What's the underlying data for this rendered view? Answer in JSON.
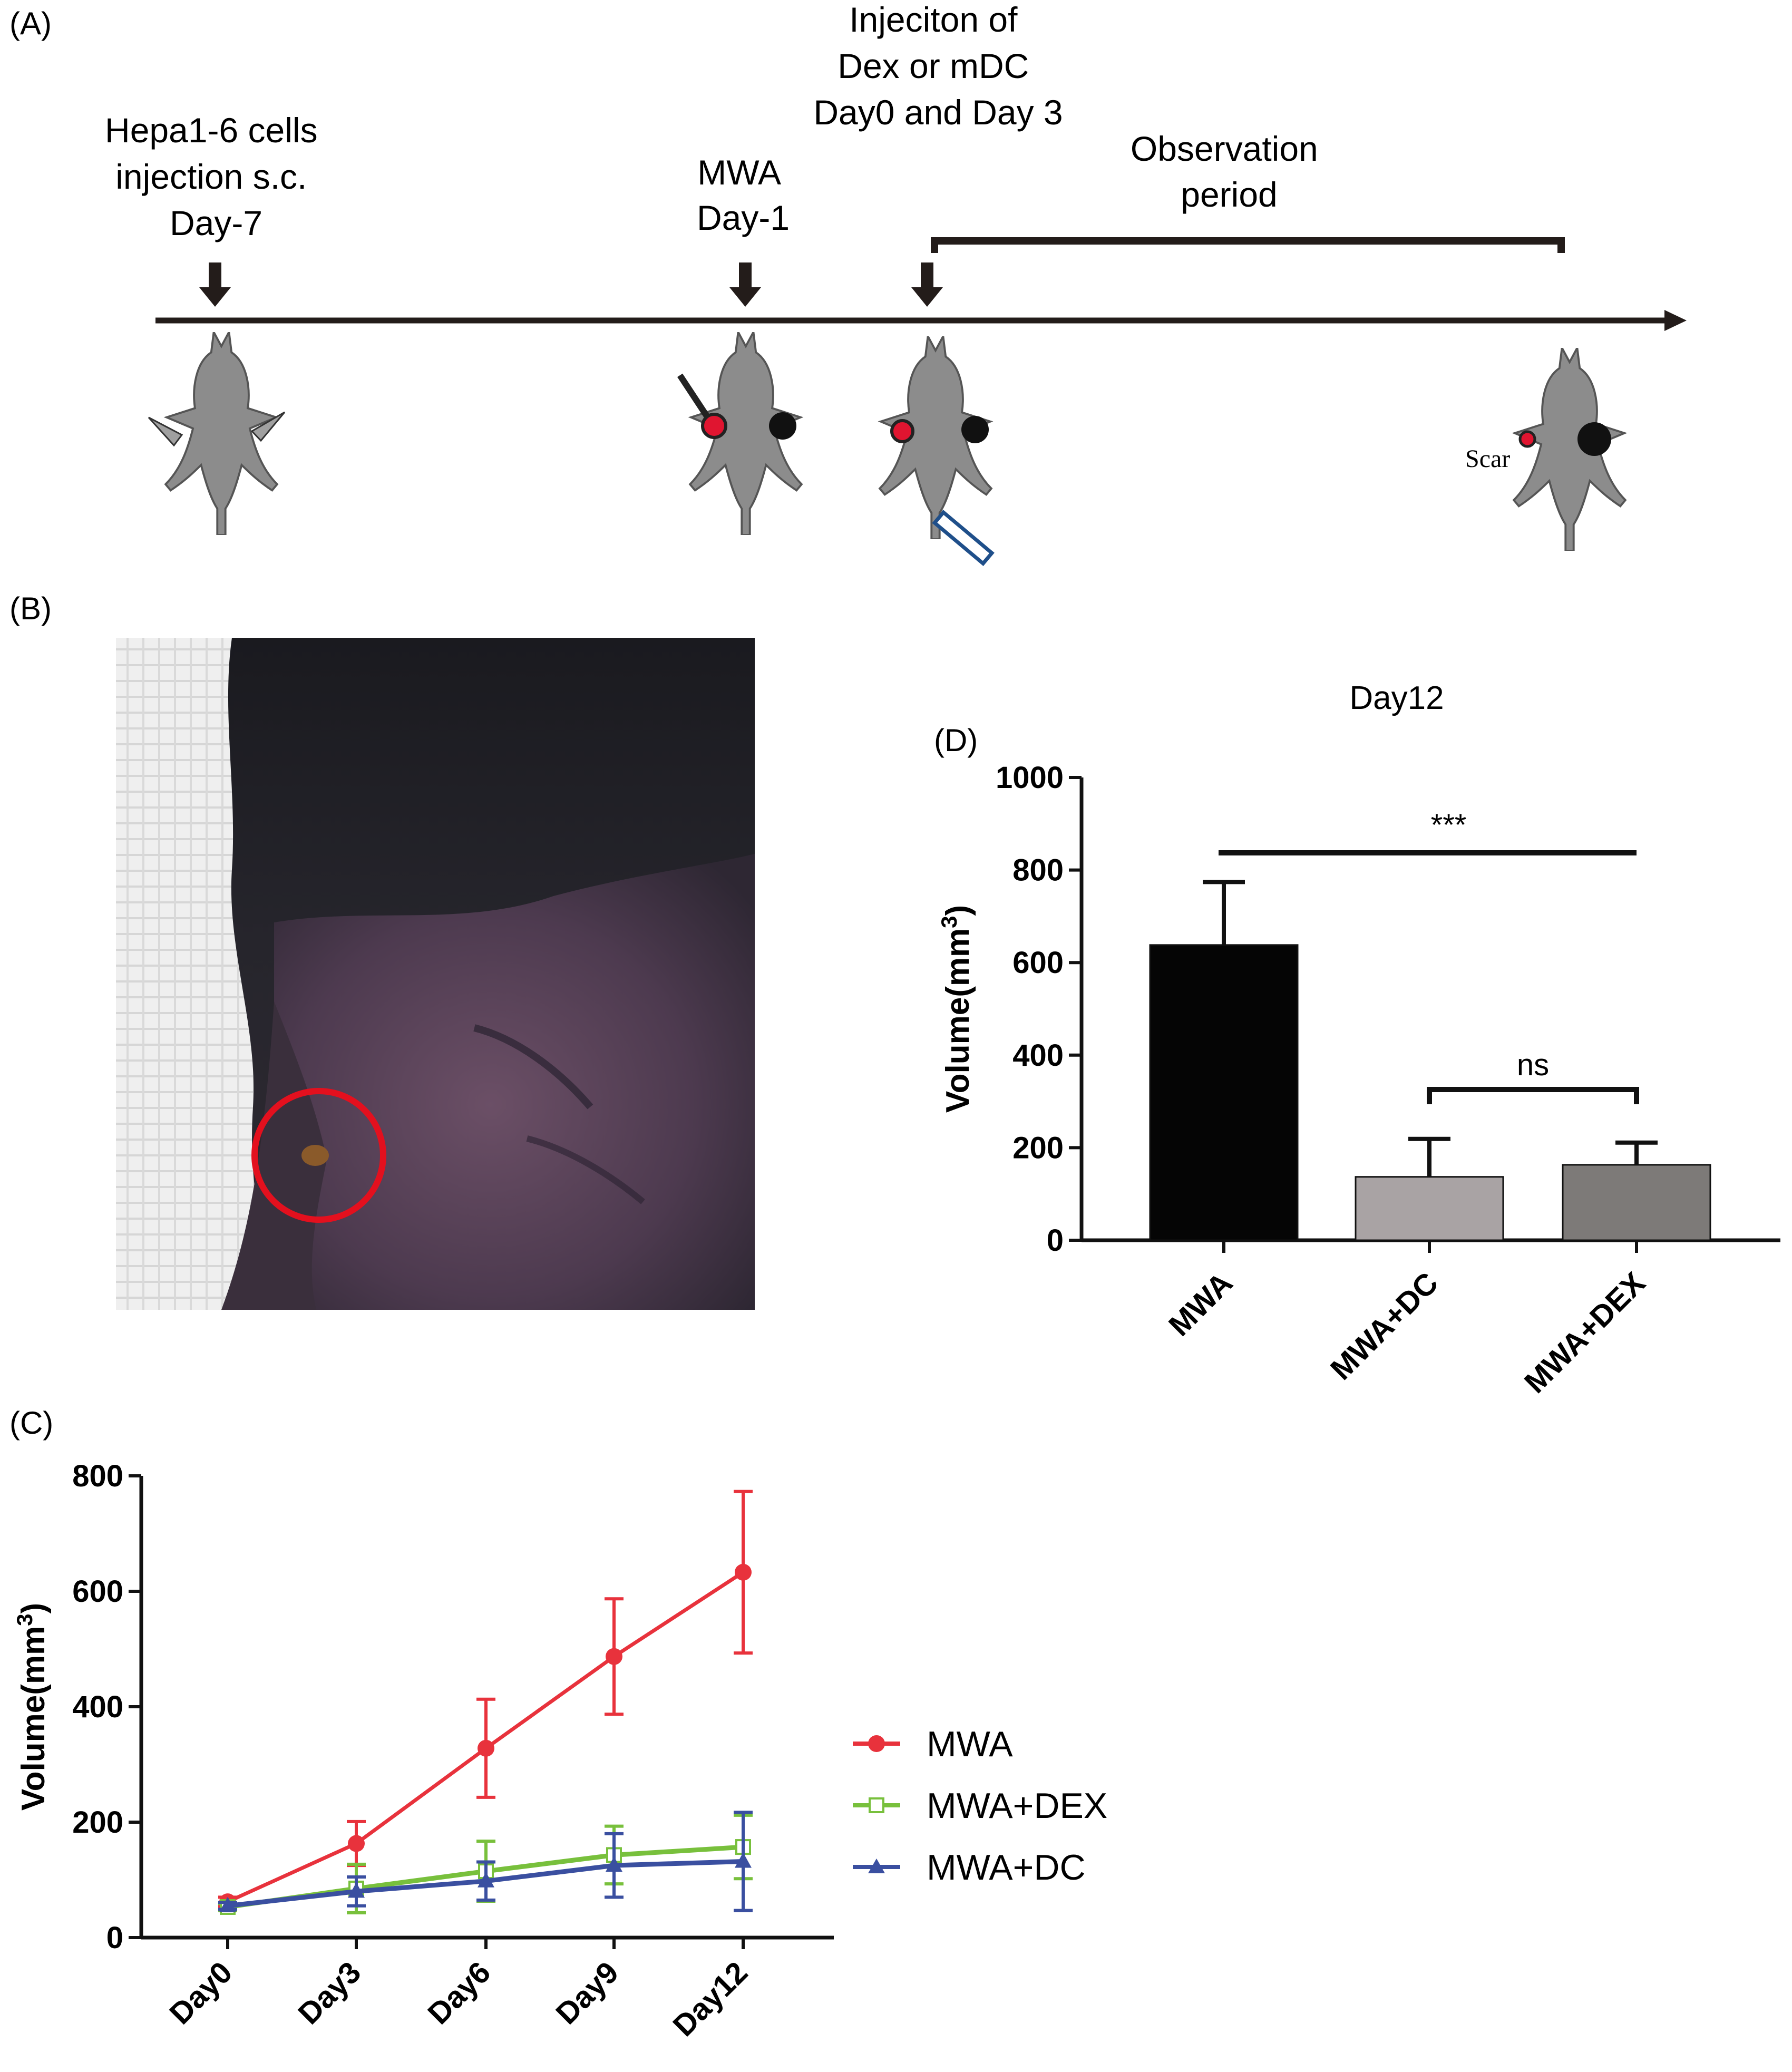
{
  "panels": {
    "a": {
      "tag": "(A)",
      "injection_label": [
        "Hepa1-6 cells",
        "injection s.c.",
        "Day-7"
      ],
      "mwa_label": [
        "MWA",
        "Day-1"
      ],
      "treatment_label": [
        "Injeciton of",
        "Dex or mDC",
        "Day0 and Day 3"
      ],
      "observation_label": [
        "Observation",
        "period"
      ],
      "scar_label": "Scar"
    },
    "b": {
      "tag": "(B)"
    },
    "c": {
      "tag": "(C)"
    },
    "d": {
      "tag": "(D)"
    }
  },
  "colors": {
    "mwa": "#e8323c",
    "mwa_dex": "#78c03c",
    "mwa_dc": "#3a4fa0",
    "bar_mwa": "#050505",
    "bar_dc": "#a9a3a4",
    "bar_dex": "#7d7a78",
    "mouse": "#8c8c8c",
    "tumor_red": "#e01530",
    "photo_circle": "#e3101e"
  },
  "chart_data": [
    {
      "id": "panel-c",
      "type": "line",
      "title": "",
      "xlabel": "",
      "ylabel": "Volume(mm3)",
      "ylabel_display": {
        "text": "Volume(mm",
        "sup": "3",
        "end": ")"
      },
      "categories": [
        "Day0",
        "Day3",
        "Day6",
        "Day9",
        "Day12"
      ],
      "ylim": [
        0,
        800
      ],
      "yticks": [
        0,
        200,
        400,
        600,
        800
      ],
      "series": [
        {
          "name": "MWA",
          "marker": "circle",
          "color_key": "mwa",
          "values": [
            62,
            163,
            328,
            487,
            633
          ],
          "errors": [
            8,
            38,
            85,
            100,
            140
          ]
        },
        {
          "name": "MWA+DEX",
          "marker": "square-open",
          "color_key": "mwa_dex",
          "values": [
            53,
            85,
            115,
            143,
            157
          ],
          "errors": [
            6,
            42,
            52,
            50,
            55
          ]
        },
        {
          "name": "MWA+DC",
          "marker": "triangle",
          "color_key": "mwa_dc",
          "values": [
            55,
            80,
            98,
            125,
            132
          ],
          "errors": [
            6,
            25,
            33,
            55,
            85
          ]
        }
      ],
      "legend": "right"
    },
    {
      "id": "panel-d",
      "type": "bar",
      "title": "Day12",
      "xlabel": "",
      "ylabel": "Volume(mm3)",
      "ylabel_display": {
        "text": "Volume(mm",
        "sup": "3",
        "end": ")"
      },
      "categories": [
        "MWA",
        "MWA+DC",
        "MWA+DEX"
      ],
      "values": [
        638,
        137,
        163
      ],
      "errors": [
        136,
        82,
        48
      ],
      "ylim": [
        0,
        1000
      ],
      "yticks": [
        0,
        200,
        400,
        600,
        800,
        1000
      ],
      "significance": [
        {
          "from": 0,
          "to": 2,
          "label": "***"
        },
        {
          "from": 1,
          "to": 2,
          "label": "ns"
        }
      ]
    }
  ]
}
